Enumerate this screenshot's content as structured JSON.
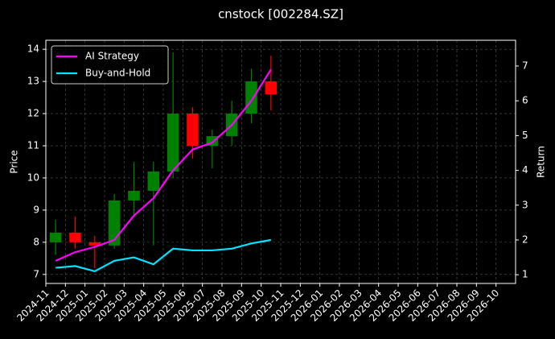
{
  "chart_data": {
    "type": "candlestick",
    "title": "cnstock [002284.SZ]",
    "ylabel": "Price",
    "y2label": "Return",
    "x": [
      "2024-11",
      "2024-12",
      "2025-01",
      "2025-02",
      "2025-03",
      "2025-04",
      "2025-05",
      "2025-06",
      "2025-07",
      "2025-08",
      "2025-09",
      "2025-10"
    ],
    "open": [
      8.0,
      8.3,
      8.0,
      7.9,
      9.3,
      9.6,
      10.2,
      12.0,
      11.0,
      11.3,
      12.0,
      13.0
    ],
    "high": [
      8.7,
      8.8,
      8.2,
      9.5,
      10.5,
      10.5,
      13.9,
      12.2,
      11.5,
      12.4,
      13.4,
      13.8
    ],
    "low": [
      7.6,
      7.8,
      7.2,
      7.8,
      8.8,
      7.9,
      10.0,
      10.6,
      10.3,
      11.0,
      11.7,
      12.1
    ],
    "close": [
      8.3,
      8.0,
      7.9,
      9.3,
      9.6,
      10.2,
      12.0,
      11.0,
      11.3,
      12.0,
      13.0,
      12.6
    ],
    "up_color": "#008000",
    "down_color": "#ff0000",
    "series": [
      {
        "name": "AI Strategy",
        "color": "#ff00ff",
        "axis": "y2",
        "values": [
          1.4,
          1.65,
          1.8,
          2.0,
          2.7,
          3.2,
          4.0,
          4.6,
          4.8,
          5.3,
          6.0,
          6.9
        ]
      },
      {
        "name": "Buy-and-Hold",
        "color": "#00e5ff",
        "axis": "y2",
        "values": [
          1.2,
          1.25,
          1.1,
          1.4,
          1.5,
          1.3,
          1.75,
          1.7,
          1.7,
          1.75,
          1.9,
          2.0
        ]
      }
    ],
    "xlim": [
      "2024-11",
      "2026-11"
    ],
    "xticks": [
      "2024-11",
      "2024-12",
      "2025-01",
      "2025-02",
      "2025-03",
      "2025-04",
      "2025-05",
      "2025-06",
      "2025-07",
      "2025-08",
      "2025-09",
      "2025-10",
      "2025-11",
      "2025-12",
      "2026-01",
      "2026-02",
      "2026-03",
      "2026-04",
      "2026-05",
      "2026-06",
      "2026-07",
      "2026-08",
      "2026-09",
      "2026-10"
    ],
    "ylim": [
      6.72,
      14.28
    ],
    "yticks": [
      7,
      8,
      9,
      10,
      11,
      12,
      13,
      14
    ],
    "y2lim": [
      0.75,
      7.74
    ],
    "y2ticks": [
      1,
      2,
      3,
      4,
      5,
      6,
      7
    ],
    "grid": true,
    "legend": "upper-left"
  }
}
